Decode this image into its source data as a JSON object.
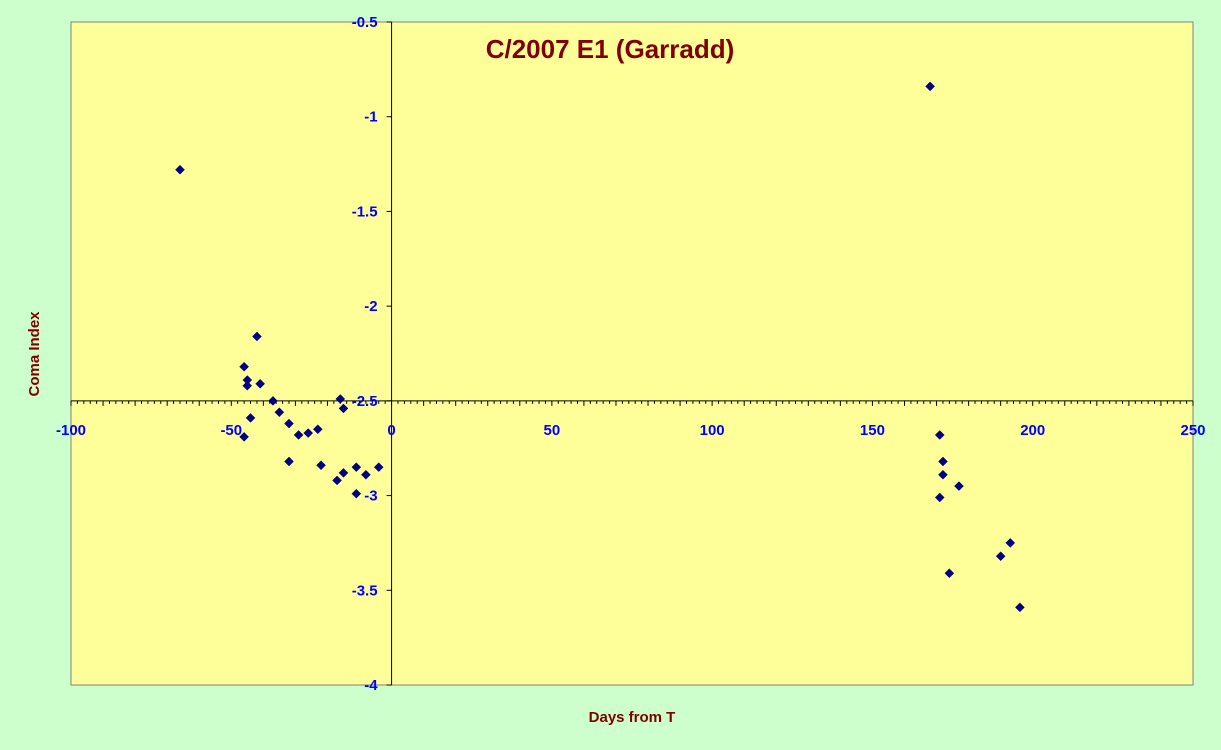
{
  "chart_data": {
    "type": "scatter",
    "title": "C/2007 E1 (Garradd)",
    "xlabel": "Days from T",
    "ylabel": "Coma Index",
    "xlim": [
      -100,
      250
    ],
    "ylim": [
      -4,
      -0.5
    ],
    "x_ticks": [
      -100,
      -50,
      0,
      50,
      100,
      150,
      200,
      250
    ],
    "y_ticks": [
      -0.5,
      -1,
      -1.5,
      -2,
      -2.5,
      -3,
      -3.5,
      -4
    ],
    "x_tick_labels": [
      "-100",
      "-50",
      "0",
      "50",
      "100",
      "150",
      "200",
      "250"
    ],
    "y_tick_labels": [
      "-0.5",
      "-1",
      "-1.5",
      "-2",
      "-2.5",
      "-3",
      "-3.5",
      "-4"
    ],
    "grid": false,
    "legend": "none",
    "colors": {
      "background": "#ccffcc",
      "plot_area": "#ffff99",
      "marker": "#000080",
      "title": "#800000",
      "tick_labels": "#0000ff"
    },
    "series": [
      {
        "points": [
          [
            -66,
            -1.28
          ],
          [
            -46,
            -2.32
          ],
          [
            -45,
            -2.39
          ],
          [
            -45,
            -2.42
          ],
          [
            -42,
            -2.16
          ],
          [
            -41,
            -2.41
          ],
          [
            -37,
            -2.5
          ],
          [
            -35,
            -2.56
          ],
          [
            -44,
            -2.59
          ],
          [
            -46,
            -2.69
          ],
          [
            -32,
            -2.62
          ],
          [
            -29,
            -2.68
          ],
          [
            -26,
            -2.67
          ],
          [
            -23,
            -2.65
          ],
          [
            -32,
            -2.82
          ],
          [
            -22,
            -2.84
          ],
          [
            -17,
            -2.92
          ],
          [
            -16,
            -2.49
          ],
          [
            -15,
            -2.54
          ],
          [
            -15,
            -2.88
          ],
          [
            -11,
            -2.85
          ],
          [
            -11,
            -2.99
          ],
          [
            -8,
            -2.89
          ],
          [
            -4,
            -2.85
          ],
          [
            168,
            -0.84
          ],
          [
            171,
            -2.68
          ],
          [
            172,
            -2.82
          ],
          [
            172,
            -2.89
          ],
          [
            171,
            -3.01
          ],
          [
            177,
            -2.95
          ],
          [
            174,
            -3.41
          ],
          [
            190,
            -3.32
          ],
          [
            193,
            -3.25
          ],
          [
            196,
            -3.59
          ]
        ]
      }
    ]
  }
}
